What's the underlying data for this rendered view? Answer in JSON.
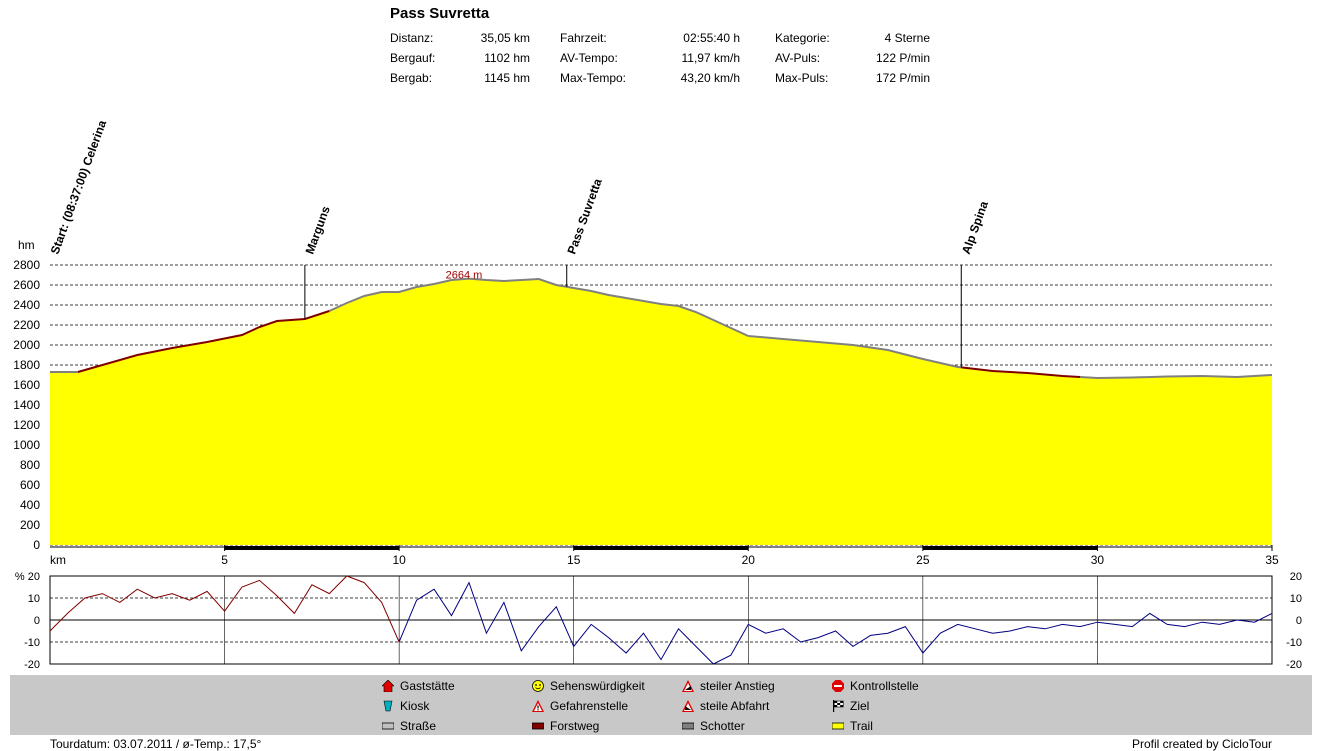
{
  "title": "Pass Suvretta",
  "stats": [
    [
      {
        "label": "Distanz:",
        "value": "35,05 km"
      },
      {
        "label": "Fahrzeit:",
        "value": "02:55:40 h"
      },
      {
        "label": "Kategorie:",
        "value": "4 Sterne"
      }
    ],
    [
      {
        "label": "Bergauf:",
        "value": "1102 hm"
      },
      {
        "label": "AV-Tempo:",
        "value": "11,97 km/h"
      },
      {
        "label": "AV-Puls:",
        "value": "122 P/min"
      }
    ],
    [
      {
        "label": "Bergab:",
        "value": "1145 hm"
      },
      {
        "label": "Max-Tempo:",
        "value": "43,20 km/h"
      },
      {
        "label": "Max-Puls:",
        "value": "172 P/min"
      }
    ]
  ],
  "colors": {
    "fill": "#ffff00",
    "road": "#808080",
    "forest": "#800000",
    "grid": "#000000",
    "slope_up": "#800000",
    "slope_down": "#000080",
    "legend_bg": "#c8c8c8"
  },
  "chart_data": [
    {
      "type": "area",
      "ylabel": "hm",
      "xlabel": "km",
      "xlim": [
        0,
        35
      ],
      "ylim": [
        0,
        2800
      ],
      "yticks": [
        0,
        200,
        400,
        600,
        800,
        1000,
        1200,
        1400,
        1600,
        1800,
        2000,
        2200,
        2400,
        2600,
        2800
      ],
      "xticks": [
        5,
        10,
        15,
        20,
        25,
        30,
        35
      ],
      "max_label": "2664 m",
      "max_point": {
        "x": 12.0,
        "y": 2664
      },
      "waypoints": [
        {
          "km": 0.0,
          "label": "Start: (08:37:00) Celerina"
        },
        {
          "km": 7.3,
          "label": "Marguns"
        },
        {
          "km": 14.8,
          "label": "Pass Suvretta"
        },
        {
          "km": 26.1,
          "label": "Alp Spina"
        }
      ],
      "x": [
        0,
        0.8,
        1.5,
        2.5,
        3.5,
        4.5,
        5.5,
        6.0,
        6.5,
        7.3,
        8.0,
        8.5,
        9.0,
        9.5,
        10.0,
        10.5,
        11.0,
        11.5,
        12.0,
        12.5,
        13.0,
        13.5,
        14.0,
        14.5,
        15.0,
        15.5,
        16.0,
        16.5,
        17.0,
        17.5,
        18.0,
        18.5,
        19.0,
        19.5,
        20.0,
        21.0,
        22.0,
        23.0,
        24.0,
        25.0,
        26.0,
        27.0,
        28.0,
        29.0,
        30.0,
        31.0,
        32.0,
        33.0,
        34.0,
        35.0
      ],
      "y": [
        1730,
        1730,
        1800,
        1900,
        1970,
        2030,
        2100,
        2180,
        2240,
        2260,
        2340,
        2420,
        2490,
        2530,
        2530,
        2580,
        2610,
        2650,
        2664,
        2650,
        2640,
        2650,
        2660,
        2600,
        2570,
        2540,
        2500,
        2470,
        2440,
        2410,
        2390,
        2330,
        2250,
        2170,
        2090,
        2060,
        2030,
        2000,
        1950,
        1860,
        1780,
        1740,
        1720,
        1690,
        1670,
        1675,
        1685,
        1690,
        1680,
        1700
      ],
      "segments": [
        {
          "from": 0.0,
          "to": 0.8,
          "type": "road"
        },
        {
          "from": 0.8,
          "to": 8.0,
          "type": "forest"
        },
        {
          "from": 8.0,
          "to": 20.0,
          "type": "road"
        },
        {
          "from": 20.0,
          "to": 26.1,
          "type": "road"
        },
        {
          "from": 26.1,
          "to": 29.5,
          "type": "forest"
        },
        {
          "from": 29.5,
          "to": 35.0,
          "type": "road"
        }
      ],
      "surface_bars": [
        [
          5,
          10
        ],
        [
          15,
          20
        ],
        [
          25,
          30
        ]
      ]
    },
    {
      "type": "line",
      "ylabel": "%",
      "xlim": [
        0,
        35
      ],
      "ylim": [
        -20,
        20
      ],
      "yticks": [
        20,
        10,
        0,
        -10,
        -20
      ],
      "x": [
        0,
        0.5,
        1,
        1.5,
        2,
        2.5,
        3,
        3.5,
        4,
        4.5,
        5,
        5.5,
        6,
        6.5,
        7,
        7.5,
        8,
        8.5,
        9,
        9.5,
        10,
        10.5,
        11,
        11.5,
        12,
        12.5,
        13,
        13.5,
        14,
        14.5,
        15,
        15.5,
        16,
        16.5,
        17,
        17.5,
        18,
        18.5,
        19,
        19.5,
        20,
        20.5,
        21,
        21.5,
        22,
        22.5,
        23,
        23.5,
        24,
        24.5,
        25,
        25.5,
        26,
        26.5,
        27,
        27.5,
        28,
        28.5,
        29,
        29.5,
        30,
        30.5,
        31,
        31.5,
        32,
        32.5,
        33,
        33.5,
        34,
        34.5,
        35
      ],
      "y": [
        -5,
        3,
        10,
        12,
        8,
        14,
        10,
        12,
        9,
        13,
        4,
        15,
        18,
        11,
        3,
        16,
        12,
        20,
        17,
        8,
        -10,
        9,
        14,
        2,
        17,
        -6,
        8,
        -14,
        -3,
        6,
        -12,
        -2,
        -8,
        -15,
        -6,
        -18,
        -4,
        -12,
        -20,
        -16,
        -2,
        -6,
        -4,
        -10,
        -8,
        -5,
        -12,
        -7,
        -6,
        -3,
        -15,
        -6,
        -2,
        -4,
        -6,
        -5,
        -3,
        -4,
        -2,
        -3,
        -1,
        -2,
        -3,
        3,
        -2,
        -3,
        -1,
        -2,
        0,
        -1,
        3
      ]
    }
  ],
  "legend": [
    {
      "label": "Gaststätte",
      "icon": "house-icon",
      "color": "#e00000"
    },
    {
      "label": "Kiosk",
      "icon": "cup-icon",
      "color": "#00b0c0"
    },
    {
      "label": "Straße",
      "icon": "road-swatch",
      "color": "#c0c0c0"
    },
    {
      "label": "Sehenswürdigkeit",
      "icon": "smiley-icon",
      "color": "#ffff00"
    },
    {
      "label": "Gefahrenstelle",
      "icon": "warning-icon",
      "color": "#e00000"
    },
    {
      "label": "Forstweg",
      "icon": "forest-swatch",
      "color": "#800000"
    },
    {
      "label": "steiler Anstieg",
      "icon": "steep-up-icon",
      "color": "#e00000"
    },
    {
      "label": "steile Abfahrt",
      "icon": "steep-down-icon",
      "color": "#e00000"
    },
    {
      "label": "Schotter",
      "icon": "gravel-swatch",
      "color": "#808080"
    },
    {
      "label": "Kontrollstelle",
      "icon": "stop-icon",
      "color": "#e00000"
    },
    {
      "label": "Ziel",
      "icon": "finish-flag-icon",
      "color": "#000000"
    },
    {
      "label": "Trail",
      "icon": "trail-swatch",
      "color": "#ffff00"
    }
  ],
  "footer": {
    "left": "Tourdatum: 03.07.2011  /  ø-Temp.: 17,5°",
    "right": "Profil created by CicloTour"
  }
}
